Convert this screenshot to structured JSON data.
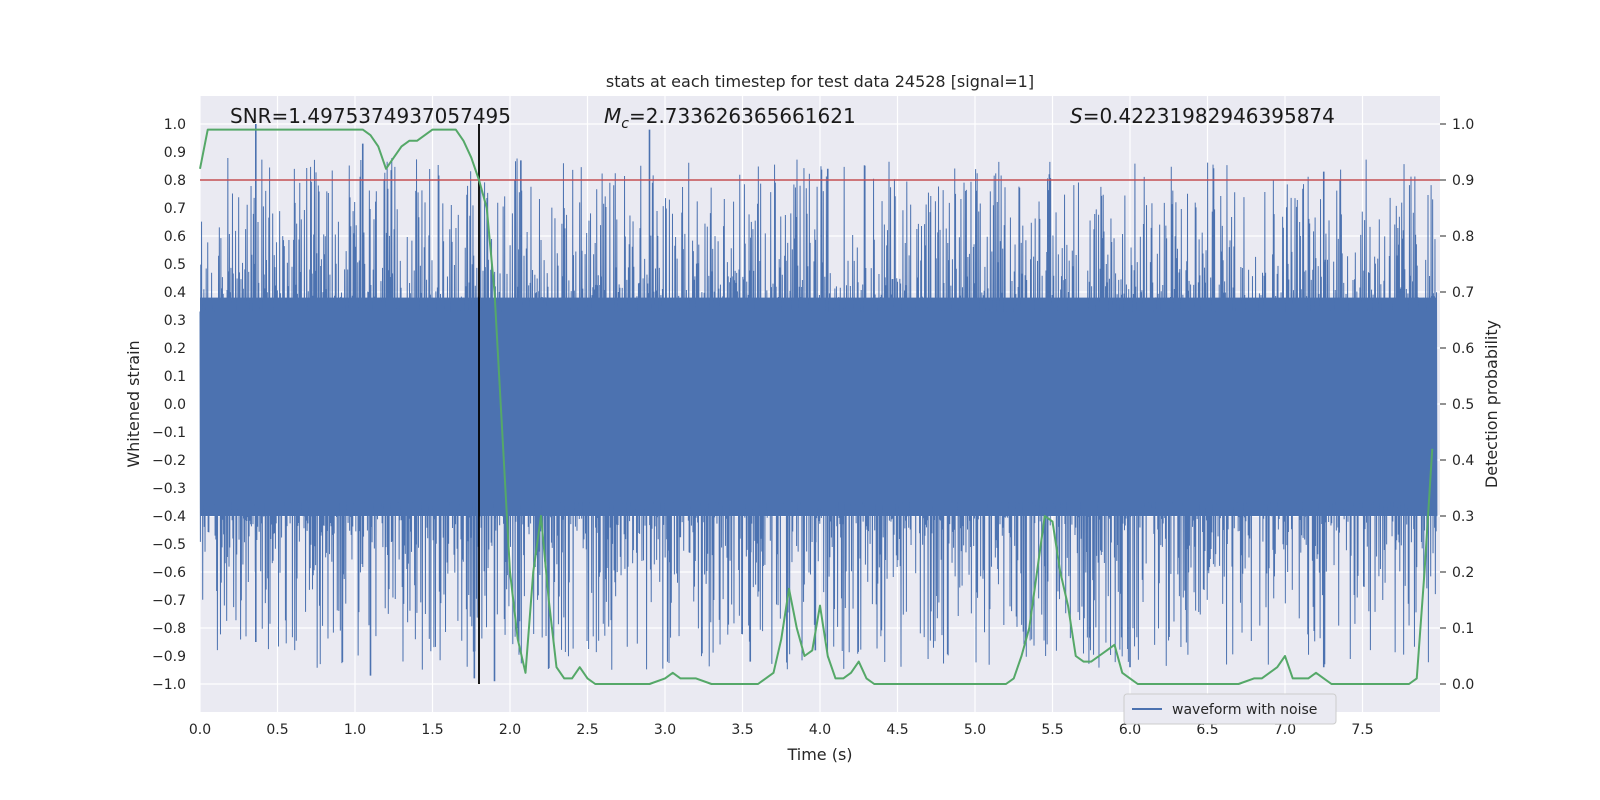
{
  "chart_data": {
    "type": "line",
    "title": "stats at each timestep for test data 24528 [signal=1]",
    "xlabel": "Time (s)",
    "ylabel_left": "Whitened strain",
    "ylabel_right": "Detection probability",
    "xlim": [
      0.0,
      8.0
    ],
    "ylim_left": [
      -1.1,
      1.1
    ],
    "ylim_right": [
      -0.05,
      1.05
    ],
    "x_ticks": [
      "0.0",
      "0.5",
      "1.0",
      "1.5",
      "2.0",
      "2.5",
      "3.0",
      "3.5",
      "4.0",
      "4.5",
      "5.0",
      "5.5",
      "6.0",
      "6.5",
      "7.0",
      "7.5"
    ],
    "y_left_ticks": [
      "1.0",
      "0.9",
      "0.8",
      "0.7",
      "0.6",
      "0.5",
      "0.4",
      "0.3",
      "0.2",
      "0.1",
      "0.0",
      "−0.1",
      "−0.2",
      "−0.3",
      "−0.4",
      "−0.5",
      "−0.6",
      "−0.7",
      "−0.8",
      "−0.9",
      "−1.0"
    ],
    "y_right_ticks": [
      "1.0",
      "0.9",
      "0.8",
      "0.7",
      "0.6",
      "0.5",
      "0.4",
      "0.3",
      "0.2",
      "0.1",
      "0.0"
    ],
    "grid": true,
    "annotations": {
      "snr": "SNR=1.4975374937057495",
      "mc_symbol": "M",
      "mc_sub": "c",
      "mc_value": "=2.733626365661621",
      "s_symbol": "S",
      "s_value": "=0.42231982946395874"
    },
    "threshold_line": {
      "y_right": 0.9,
      "color": "#c44e52"
    },
    "marker_line": {
      "x": 1.8,
      "color": "#000000"
    },
    "colors": {
      "waveform": "#4c72b0",
      "probability": "#55a868",
      "background": "#eaeaf2"
    },
    "legend": {
      "placement": "lower-right",
      "entries": [
        "waveform with noise"
      ]
    },
    "series": [
      {
        "name": "waveform with noise",
        "axis": "left",
        "kind": "dense-noise",
        "x_range": [
          0.0,
          7.98
        ],
        "core_band": [
          -0.4,
          0.38
        ],
        "peak_max": 1.0,
        "peak_min": -1.0,
        "spikes": [
          {
            "x": 0.36,
            "y": 1.0
          },
          {
            "x": 1.05,
            "y": 0.93
          },
          {
            "x": 2.07,
            "y": 0.87
          },
          {
            "x": 2.9,
            "y": 0.98
          },
          {
            "x": 4.05,
            "y": 0.84
          },
          {
            "x": 7.25,
            "y": 0.83
          },
          {
            "x": 0.36,
            "y": -0.85
          },
          {
            "x": 1.1,
            "y": -0.97
          },
          {
            "x": 1.77,
            "y": -0.98
          },
          {
            "x": 1.9,
            "y": -0.99
          },
          {
            "x": 2.05,
            "y": -0.8
          },
          {
            "x": 3.55,
            "y": -0.92
          },
          {
            "x": 3.97,
            "y": -0.88
          },
          {
            "x": 6.0,
            "y": -0.94
          },
          {
            "x": 7.25,
            "y": -0.94
          }
        ]
      },
      {
        "name": "detection probability",
        "axis": "right",
        "x": [
          0.0,
          0.05,
          0.1,
          0.2,
          0.3,
          0.5,
          0.7,
          0.9,
          1.0,
          1.05,
          1.1,
          1.15,
          1.2,
          1.25,
          1.3,
          1.35,
          1.4,
          1.45,
          1.5,
          1.55,
          1.6,
          1.65,
          1.7,
          1.75,
          1.8,
          1.85,
          1.9,
          1.95,
          2.0,
          2.05,
          2.1,
          2.15,
          2.2,
          2.25,
          2.3,
          2.35,
          2.4,
          2.45,
          2.5,
          2.55,
          2.6,
          2.7,
          2.8,
          2.9,
          3.0,
          3.05,
          3.1,
          3.2,
          3.3,
          3.4,
          3.5,
          3.6,
          3.65,
          3.7,
          3.75,
          3.8,
          3.85,
          3.9,
          3.95,
          4.0,
          4.05,
          4.1,
          4.15,
          4.2,
          4.25,
          4.3,
          4.35,
          4.4,
          4.5,
          4.6,
          4.7,
          4.8,
          4.9,
          5.0,
          5.1,
          5.2,
          5.25,
          5.3,
          5.35,
          5.4,
          5.45,
          5.5,
          5.55,
          5.6,
          5.65,
          5.7,
          5.75,
          5.8,
          5.85,
          5.9,
          5.95,
          6.0,
          6.05,
          6.1,
          6.3,
          6.5,
          6.7,
          6.8,
          6.85,
          6.9,
          6.95,
          7.0,
          7.05,
          7.1,
          7.15,
          7.2,
          7.25,
          7.3,
          7.35,
          7.4,
          7.5,
          7.6,
          7.7,
          7.8,
          7.85,
          7.9,
          7.95
        ],
        "values": [
          0.92,
          0.99,
          0.99,
          0.99,
          0.99,
          0.99,
          0.99,
          0.99,
          0.99,
          0.99,
          0.98,
          0.96,
          0.92,
          0.94,
          0.96,
          0.97,
          0.97,
          0.98,
          0.99,
          0.99,
          0.99,
          0.99,
          0.97,
          0.94,
          0.9,
          0.85,
          0.7,
          0.45,
          0.2,
          0.08,
          0.02,
          0.2,
          0.3,
          0.15,
          0.03,
          0.01,
          0.01,
          0.03,
          0.01,
          0.0,
          0.0,
          0.0,
          0.0,
          0.0,
          0.01,
          0.02,
          0.01,
          0.01,
          0.0,
          0.0,
          0.0,
          0.0,
          0.01,
          0.02,
          0.08,
          0.17,
          0.1,
          0.05,
          0.06,
          0.14,
          0.05,
          0.01,
          0.01,
          0.02,
          0.04,
          0.01,
          0.0,
          0.0,
          0.0,
          0.0,
          0.0,
          0.0,
          0.0,
          0.0,
          0.0,
          0.0,
          0.01,
          0.05,
          0.1,
          0.2,
          0.3,
          0.29,
          0.2,
          0.14,
          0.05,
          0.04,
          0.04,
          0.05,
          0.06,
          0.07,
          0.02,
          0.01,
          0.0,
          0.0,
          0.0,
          0.0,
          0.0,
          0.01,
          0.01,
          0.02,
          0.03,
          0.05,
          0.01,
          0.01,
          0.01,
          0.02,
          0.01,
          0.0,
          0.0,
          0.0,
          0.0,
          0.0,
          0.0,
          0.0,
          0.01,
          0.2,
          0.42
        ]
      }
    ]
  }
}
